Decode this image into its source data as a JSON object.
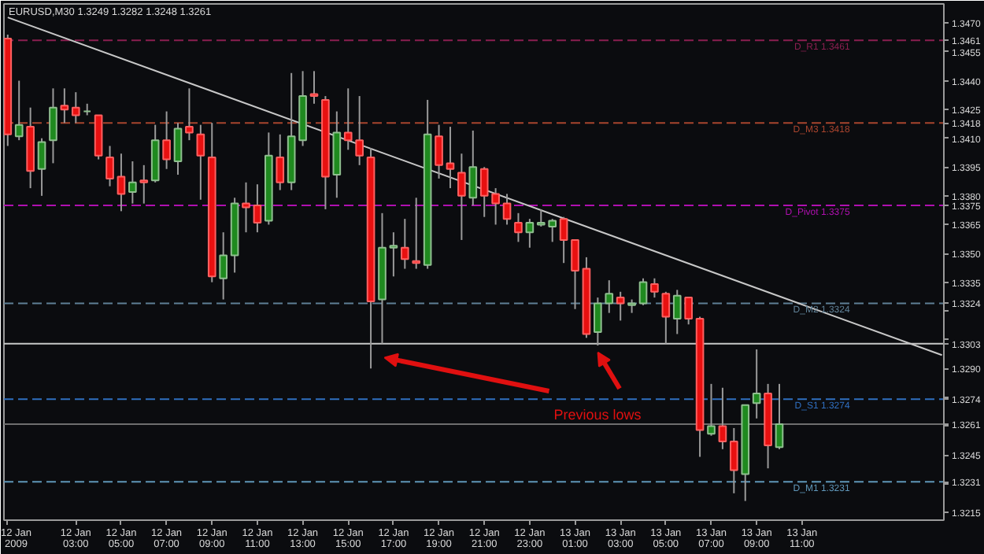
{
  "chart_data": {
    "type": "candlestick",
    "title": "EURUSD,M30  1.3249 1.3282 1.3248 1.3261",
    "x": [
      "2009-01-12T00:00",
      "2009-01-12T00:30",
      "2009-01-12T01:00",
      "2009-01-12T01:30",
      "2009-01-12T02:00",
      "2009-01-12T02:30",
      "2009-01-12T03:00",
      "2009-01-12T03:30",
      "2009-01-12T04:00",
      "2009-01-12T04:30",
      "2009-01-12T05:00",
      "2009-01-12T05:30",
      "2009-01-12T06:00",
      "2009-01-12T06:30",
      "2009-01-12T07:00",
      "2009-01-12T07:30",
      "2009-01-12T08:00",
      "2009-01-12T08:30",
      "2009-01-12T09:00",
      "2009-01-12T09:30",
      "2009-01-12T10:00",
      "2009-01-12T10:30",
      "2009-01-12T11:00",
      "2009-01-12T11:30",
      "2009-01-12T12:00",
      "2009-01-12T12:30",
      "2009-01-12T13:00",
      "2009-01-12T13:30",
      "2009-01-12T14:00",
      "2009-01-12T14:30",
      "2009-01-12T15:00",
      "2009-01-12T15:30",
      "2009-01-12T16:00",
      "2009-01-12T16:30",
      "2009-01-12T17:00",
      "2009-01-12T17:30",
      "2009-01-12T18:00",
      "2009-01-12T18:30",
      "2009-01-12T19:00",
      "2009-01-12T19:30",
      "2009-01-12T20:00",
      "2009-01-12T20:30",
      "2009-01-12T21:00",
      "2009-01-12T21:30",
      "2009-01-12T22:00",
      "2009-01-12T22:30",
      "2009-01-12T23:00",
      "2009-01-12T23:30",
      "2009-01-13T00:00",
      "2009-01-13T00:30",
      "2009-01-13T01:00",
      "2009-01-13T01:30",
      "2009-01-13T02:00",
      "2009-01-13T02:30",
      "2009-01-13T03:00",
      "2009-01-13T03:30",
      "2009-01-13T04:00",
      "2009-01-13T04:30",
      "2009-01-13T05:00",
      "2009-01-13T05:30",
      "2009-01-13T06:00",
      "2009-01-13T06:30",
      "2009-01-13T07:00",
      "2009-01-13T07:30",
      "2009-01-13T08:00",
      "2009-01-13T08:30",
      "2009-01-13T09:00",
      "2009-01-13T09:30",
      "2009-01-13T10:00"
    ],
    "ohlc": [
      [
        1.3462,
        1.3464,
        1.3406,
        1.3412
      ],
      [
        1.3411,
        1.344,
        1.3409,
        1.3417
      ],
      [
        1.3416,
        1.3426,
        1.3384,
        1.3393
      ],
      [
        1.3394,
        1.341,
        1.338,
        1.3408
      ],
      [
        1.3409,
        1.3436,
        1.3397,
        1.3426
      ],
      [
        1.3427,
        1.3436,
        1.3418,
        1.3425
      ],
      [
        1.3426,
        1.3434,
        1.3418,
        1.3422
      ],
      [
        1.3424,
        1.3428,
        1.3422,
        1.3424
      ],
      [
        1.3422,
        1.3422,
        1.3399,
        1.3401
      ],
      [
        1.34,
        1.3406,
        1.3385,
        1.3389
      ],
      [
        1.339,
        1.3402,
        1.3372,
        1.3381
      ],
      [
        1.3382,
        1.3398,
        1.3376,
        1.3387
      ],
      [
        1.3388,
        1.3396,
        1.3376,
        1.3387
      ],
      [
        1.3388,
        1.3417,
        1.3387,
        1.3409
      ],
      [
        1.3409,
        1.3424,
        1.3394,
        1.3399
      ],
      [
        1.3398,
        1.3418,
        1.3391,
        1.3415
      ],
      [
        1.3416,
        1.3436,
        1.3409,
        1.3413
      ],
      [
        1.3412,
        1.3417,
        1.3378,
        1.3401
      ],
      [
        1.34,
        1.3418,
        1.3335,
        1.3338
      ],
      [
        1.3337,
        1.3361,
        1.3326,
        1.3349
      ],
      [
        1.3349,
        1.3379,
        1.334,
        1.3376
      ],
      [
        1.3376,
        1.3387,
        1.3361,
        1.3374
      ],
      [
        1.3375,
        1.3386,
        1.3361,
        1.3366
      ],
      [
        1.3367,
        1.3413,
        1.3365,
        1.3401
      ],
      [
        1.34,
        1.3412,
        1.3383,
        1.3387
      ],
      [
        1.3387,
        1.3444,
        1.3383,
        1.3411
      ],
      [
        1.3409,
        1.3445,
        1.3406,
        1.3432
      ],
      [
        1.3433,
        1.3445,
        1.3428,
        1.3432
      ],
      [
        1.343,
        1.3432,
        1.3373,
        1.339
      ],
      [
        1.3391,
        1.3424,
        1.3379,
        1.3413
      ],
      [
        1.3413,
        1.3436,
        1.3404,
        1.3409
      ],
      [
        1.3409,
        1.3432,
        1.3396,
        1.3401
      ],
      [
        1.34,
        1.3405,
        1.329,
        1.3325
      ],
      [
        1.3326,
        1.3371,
        1.3303,
        1.3353
      ],
      [
        1.3353,
        1.3361,
        1.3338,
        1.3354
      ],
      [
        1.3353,
        1.3368,
        1.3342,
        1.3347
      ],
      [
        1.3346,
        1.3379,
        1.3342,
        1.3345
      ],
      [
        1.3344,
        1.343,
        1.3342,
        1.3412
      ],
      [
        1.3411,
        1.3417,
        1.3389,
        1.3396
      ],
      [
        1.3397,
        1.3416,
        1.3384,
        1.3394
      ],
      [
        1.3392,
        1.3402,
        1.3357,
        1.338
      ],
      [
        1.3379,
        1.3414,
        1.3375,
        1.3395
      ],
      [
        1.3394,
        1.3395,
        1.3369,
        1.338
      ],
      [
        1.3381,
        1.3384,
        1.3365,
        1.3376
      ],
      [
        1.3376,
        1.3381,
        1.3365,
        1.3368
      ],
      [
        1.3366,
        1.3371,
        1.3356,
        1.3361
      ],
      [
        1.3361,
        1.3368,
        1.3353,
        1.3366
      ],
      [
        1.3365,
        1.3373,
        1.3364,
        1.3366
      ],
      [
        1.3364,
        1.3368,
        1.3356,
        1.3367
      ],
      [
        1.3368,
        1.3369,
        1.3345,
        1.3357
      ],
      [
        1.3357,
        1.3357,
        1.3321,
        1.3341
      ],
      [
        1.3342,
        1.3348,
        1.3306,
        1.3308
      ],
      [
        1.3309,
        1.3327,
        1.3302,
        1.3324
      ],
      [
        1.3324,
        1.3336,
        1.3319,
        1.3329
      ],
      [
        1.3327,
        1.333,
        1.3315,
        1.3324
      ],
      [
        1.3323,
        1.3326,
        1.3319,
        1.3324
      ],
      [
        1.3324,
        1.3337,
        1.3323,
        1.3335
      ],
      [
        1.3334,
        1.3337,
        1.3327,
        1.333
      ],
      [
        1.3329,
        1.333,
        1.3303,
        1.3317
      ],
      [
        1.3316,
        1.3331,
        1.3308,
        1.3328
      ],
      [
        1.3327,
        1.3327,
        1.3313,
        1.3316
      ],
      [
        1.3316,
        1.3317,
        1.3244,
        1.3258
      ],
      [
        1.3256,
        1.3282,
        1.3255,
        1.326
      ],
      [
        1.326,
        1.328,
        1.3248,
        1.3252
      ],
      [
        1.3252,
        1.3259,
        1.3225,
        1.3237
      ],
      [
        1.3235,
        1.3271,
        1.3221,
        1.3271
      ],
      [
        1.3272,
        1.33,
        1.3264,
        1.3277
      ],
      [
        1.3277,
        1.3282,
        1.3238,
        1.325
      ],
      [
        1.3249,
        1.3282,
        1.3248,
        1.3261
      ]
    ],
    "series": [
      {
        "type": "line",
        "color": "#c8c8c8",
        "x": [
          "2009-01-12T00:00",
          "2009-01-13T17:10"
        ],
        "values": [
          1.3473,
          1.3297
        ]
      }
    ],
    "xlim": [
      "2009-01-11T23:50",
      "2009-01-13T17:15"
    ],
    "xticks": [
      {
        "value": "2009-01-12T00:00",
        "label": "12 Jan 2009"
      },
      {
        "value": "2009-01-12T03:00",
        "label": "12 Jan 03:00"
      },
      {
        "value": "2009-01-12T05:00",
        "label": "12 Jan 05:00"
      },
      {
        "value": "2009-01-12T07:00",
        "label": "12 Jan 07:00"
      },
      {
        "value": "2009-01-12T09:00",
        "label": "12 Jan 09:00"
      },
      {
        "value": "2009-01-12T11:00",
        "label": "12 Jan 11:00"
      },
      {
        "value": "2009-01-12T13:00",
        "label": "12 Jan 13:00"
      },
      {
        "value": "2009-01-12T15:00",
        "label": "12 Jan 15:00"
      },
      {
        "value": "2009-01-12T17:00",
        "label": "12 Jan 17:00"
      },
      {
        "value": "2009-01-12T19:00",
        "label": "12 Jan 19:00"
      },
      {
        "value": "2009-01-12T21:00",
        "label": "12 Jan 21:00"
      },
      {
        "value": "2009-01-12T23:00",
        "label": "12 Jan 23:00"
      },
      {
        "value": "2009-01-13T01:00",
        "label": "13 Jan 01:00"
      },
      {
        "value": "2009-01-13T03:00",
        "label": "13 Jan 03:00"
      },
      {
        "value": "2009-01-13T05:00",
        "label": "13 Jan 05:00"
      },
      {
        "value": "2009-01-13T07:00",
        "label": "13 Jan 07:00"
      },
      {
        "value": "2009-01-13T09:00",
        "label": "13 Jan 09:00"
      },
      {
        "value": "2009-01-13T11:00",
        "label": "13 Jan 11:00"
      }
    ],
    "ylim": [
      1.3211,
      1.348
    ],
    "yticks": [
      {
        "value": 1.347,
        "label": "1.3470"
      },
      1.3461,
      1.3455,
      {
        "value": 1.344,
        "label": "1.3440"
      },
      1.3425,
      1.3418,
      {
        "value": 1.341,
        "label": "1.3410"
      },
      1.3395,
      {
        "value": 1.338,
        "label": "1.3380"
      },
      1.3375,
      1.3365,
      {
        "value": 1.335,
        "label": "1.3350"
      },
      1.3335,
      1.3324,
      {
        "value": 1.332,
        "label": null
      },
      {
        "value": 1.3305,
        "label": null
      },
      1.3303,
      {
        "value": 1.329,
        "label": "1.3290"
      },
      {
        "value": 1.3275,
        "label": null
      },
      1.3274,
      1.3261,
      {
        "value": 1.326,
        "label": null
      },
      1.3245,
      1.3231,
      {
        "value": 1.323,
        "label": null
      },
      1.3215
    ],
    "ref_lines": [
      {
        "axis": "y",
        "value": 1.3461,
        "label": "D_R1 1.3461",
        "color": "#8a1f50",
        "line_style": "dashed"
      },
      {
        "axis": "y",
        "value": 1.3418,
        "label": "D_M3 1.3418",
        "color": "#a8442e",
        "line_style": "dashed"
      },
      {
        "axis": "y",
        "value": 1.3375,
        "label": "D_Pivot 1.3375",
        "color": "#b010b0",
        "line_style": "dashed"
      },
      {
        "axis": "y",
        "value": 1.3324,
        "label": "D_M2 1.3324",
        "color": "#5f8096",
        "line_style": "dashed"
      },
      {
        "axis": "y",
        "value": 1.3303,
        "label": null,
        "color": "#c8c8c8",
        "line_style": "solid"
      },
      {
        "axis": "y",
        "value": 1.3274,
        "label": "D_S1 1.3274",
        "color": "#2f6fc0",
        "line_style": "dashed"
      },
      {
        "axis": "y",
        "value": 1.3261,
        "label": null,
        "color": "#6e6e6e",
        "line_style": "solid"
      },
      {
        "axis": "y",
        "value": 1.3231,
        "label": "D_M1 1.3231",
        "color": "#5f96b8",
        "line_style": "dashed"
      }
    ],
    "annotations": [
      "Previous lows"
    ]
  }
}
